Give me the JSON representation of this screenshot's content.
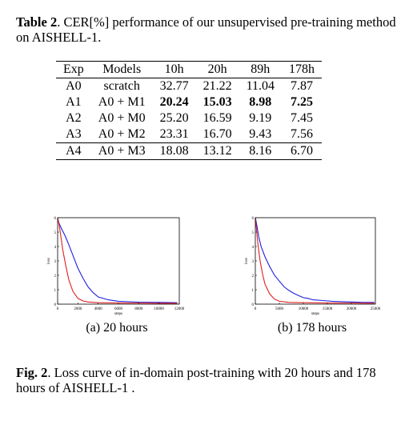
{
  "table": {
    "label": "Table 2",
    "caption_text": ". CER[%] performance of our unsupervised pre-training method on AISHELL-1.",
    "headers": [
      "Exp",
      "Models",
      "10h",
      "20h",
      "89h",
      "178h"
    ],
    "rows": [
      [
        "A0",
        "scratch",
        "32.77",
        "21.22",
        "11.04",
        "7.87"
      ],
      [
        "A1",
        "A0 + M1",
        "20.24",
        "15.03",
        "8.98",
        "7.25"
      ],
      [
        "A2",
        "A0 + M0",
        "25.20",
        "16.59",
        "9.19",
        "7.45"
      ],
      [
        "A3",
        "A0 + M2",
        "23.31",
        "16.70",
        "9.43",
        "7.56"
      ],
      [
        "A4",
        "A0 + M3",
        "18.08",
        "13.12",
        "8.16",
        "6.70"
      ]
    ]
  },
  "figure": {
    "label": "Fig. 2",
    "caption_text": ". Loss curve of in-domain post-training with 20 hours and 178 hours of AISHELL-1 .",
    "subcaptions": [
      "(a) 20 hours",
      "(b) 178 hours"
    ]
  },
  "chart_data": [
    {
      "type": "line",
      "xlabel": "steps",
      "ylabel": "loss",
      "xlim": [
        0,
        12000
      ],
      "xticks": [
        "0",
        "2000",
        "4000",
        "6000",
        "8000",
        "10000",
        "12000"
      ],
      "ylim": [
        0,
        6
      ],
      "yticks": [
        "0",
        "1",
        "2",
        "3",
        "4",
        "5",
        "6"
      ],
      "series": [
        {
          "color": "#1f1fe0",
          "x": [
            0,
            150,
            400,
            700,
            1000,
            1500,
            2000,
            2500,
            3000,
            3500,
            4000,
            5000,
            6000,
            8000,
            10000,
            11800
          ],
          "y": [
            5.9,
            5.6,
            5.2,
            4.8,
            4.3,
            3.4,
            2.5,
            1.8,
            1.2,
            0.8,
            0.5,
            0.3,
            0.2,
            0.14,
            0.12,
            0.1
          ]
        },
        {
          "color": "#e01f1f",
          "x": [
            0,
            150,
            300,
            500,
            800,
            1100,
            1500,
            2000,
            2500,
            3000,
            4000,
            6000,
            8000,
            10000,
            11800
          ],
          "y": [
            6.0,
            5.5,
            4.8,
            3.8,
            2.7,
            1.7,
            0.9,
            0.4,
            0.22,
            0.15,
            0.1,
            0.08,
            0.07,
            0.06,
            0.06
          ]
        }
      ]
    },
    {
      "type": "line",
      "xlabel": "steps",
      "ylabel": "loss",
      "xlim": [
        0,
        25000
      ],
      "xticks": [
        "0",
        "5000",
        "10000",
        "15000",
        "20000",
        "25000"
      ],
      "ylim": [
        0,
        6
      ],
      "yticks": [
        "0",
        "1",
        "2",
        "3",
        "4",
        "5",
        "6"
      ],
      "series": [
        {
          "color": "#1f1fe0",
          "x": [
            0,
            300,
            700,
            1200,
            2000,
            3000,
            4000,
            5000,
            6000,
            7000,
            8000,
            9000,
            10000,
            11000,
            12000,
            14000,
            16000,
            18000,
            20000,
            22000,
            24800
          ],
          "y": [
            6.0,
            5.5,
            4.7,
            4.0,
            3.3,
            2.6,
            2.0,
            1.6,
            1.2,
            0.95,
            0.75,
            0.6,
            0.45,
            0.4,
            0.3,
            0.25,
            0.2,
            0.17,
            0.15,
            0.13,
            0.12
          ]
        },
        {
          "color": "#e01f1f",
          "x": [
            0,
            300,
            600,
            1000,
            1500,
            2000,
            3000,
            4000,
            5000,
            7000,
            10000,
            15000,
            20000,
            24800
          ],
          "y": [
            6.0,
            5.0,
            4.0,
            3.0,
            2.1,
            1.4,
            0.7,
            0.35,
            0.2,
            0.12,
            0.1,
            0.08,
            0.07,
            0.06
          ]
        }
      ]
    }
  ]
}
